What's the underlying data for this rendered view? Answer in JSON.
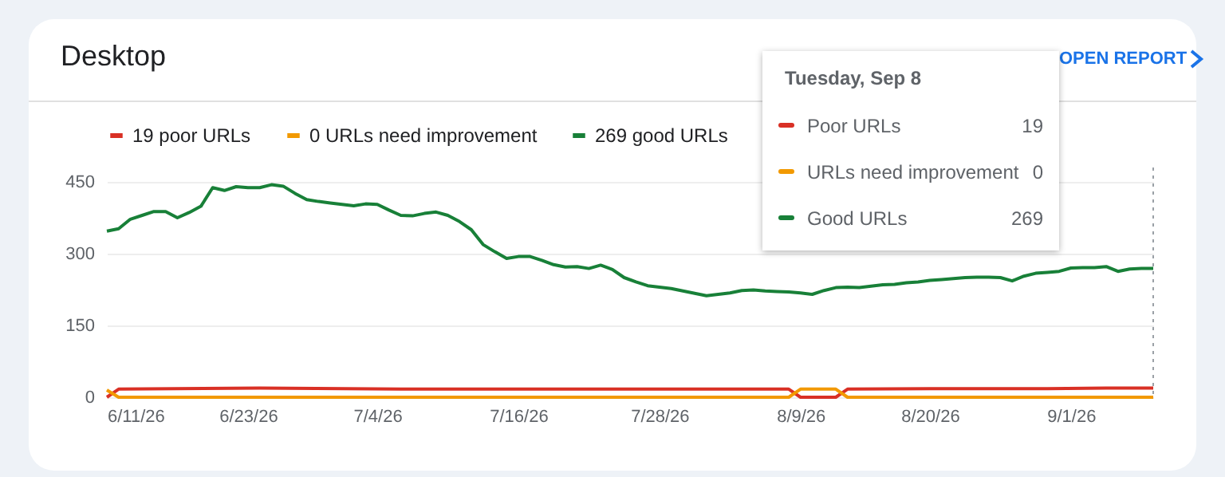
{
  "chart_data": {
    "type": "line",
    "title": "Desktop",
    "series": [
      {
        "name": "19 poor URLs",
        "color": "#d93025",
        "x": [
          "--06-11",
          "--06-12",
          "--06-24",
          "--07-06",
          "--08-08",
          "--08-09",
          "--08-12",
          "--08-13",
          "--08-20",
          "--08-30",
          "--09-04",
          "--09-08"
        ],
        "values": [
          0,
          17,
          19,
          17,
          17,
          0,
          0,
          17,
          18,
          18,
          19,
          19
        ]
      },
      {
        "name": "0 URLs need improvement",
        "color": "#f29900",
        "x": [
          "--06-11",
          "--06-12",
          "--08-08",
          "--08-09",
          "--08-12",
          "--08-13",
          "--09-08"
        ],
        "values": [
          15,
          0,
          0,
          17,
          17,
          0,
          0
        ]
      },
      {
        "name": "269 good URLs",
        "color": "#188038",
        "x": [
          "--06-11",
          "--06-12",
          "--06-13",
          "--06-14",
          "--06-15",
          "--06-16",
          "--06-17",
          "--06-18",
          "--06-19",
          "--06-20",
          "--06-21",
          "--06-22",
          "--06-23",
          "--06-24",
          "--06-25",
          "--06-26",
          "--06-27",
          "--06-28",
          "--06-29",
          "--06-30",
          "--07-01",
          "--07-02",
          "--07-03",
          "--07-04",
          "--07-05",
          "--07-06",
          "--07-07",
          "--07-08",
          "--07-09",
          "--07-10",
          "--07-11",
          "--07-12",
          "--07-13",
          "--07-14",
          "--07-15",
          "--07-16",
          "--07-17",
          "--07-18",
          "--07-19",
          "--07-20",
          "--07-21",
          "--07-22",
          "--07-23",
          "--07-24",
          "--07-25",
          "--07-26",
          "--07-27",
          "--07-28",
          "--07-29",
          "--07-30",
          "--07-31",
          "--08-01",
          "--08-02",
          "--08-03",
          "--08-04",
          "--08-05",
          "--08-06",
          "--08-07",
          "--08-08",
          "--08-09",
          "--08-10",
          "--08-11",
          "--08-12",
          "--08-13",
          "--08-14",
          "--08-15",
          "--08-16",
          "--08-17",
          "--08-18",
          "--08-19",
          "--08-20",
          "--08-21",
          "--08-22",
          "--08-23",
          "--08-24",
          "--08-25",
          "--08-26",
          "--08-27",
          "--08-28",
          "--08-29",
          "--08-30",
          "--08-31",
          "--09-01",
          "--09-02",
          "--09-03",
          "--09-04",
          "--09-05",
          "--09-06",
          "--09-07",
          "--09-08"
        ],
        "values": [
          347,
          352,
          372,
          380,
          388,
          388,
          375,
          386,
          399,
          438,
          432,
          440,
          438,
          438,
          444,
          441,
          426,
          413,
          409,
          406,
          403,
          400,
          404,
          403,
          391,
          380,
          379,
          384,
          387,
          380,
          367,
          350,
          319,
          304,
          290,
          294,
          294,
          286,
          277,
          272,
          273,
          269,
          276,
          267,
          250,
          241,
          233,
          230,
          227,
          222,
          217,
          212,
          215,
          218,
          223,
          224,
          222,
          221,
          220,
          218,
          215,
          223,
          229,
          230,
          229,
          232,
          235,
          236,
          239,
          241,
          244,
          246,
          248,
          250,
          251,
          251,
          250,
          243,
          253,
          259,
          261,
          263,
          270,
          271,
          271,
          273,
          263,
          268,
          269,
          269
        ]
      }
    ],
    "xlim": [
      "--06-11",
      "--09-08"
    ],
    "xticks": [
      {
        "value": "--06-11",
        "label": "6/11/26"
      },
      {
        "value": "--06-23",
        "label": "6/23/26"
      },
      {
        "value": "--07-04",
        "label": "7/4/26"
      },
      {
        "value": "--07-16",
        "label": "7/16/26"
      },
      {
        "value": "--07-28",
        "label": "7/28/26"
      },
      {
        "value": "--08-09",
        "label": "8/9/26"
      },
      {
        "value": "--08-20",
        "label": "8/20/26"
      },
      {
        "value": "--09-01",
        "label": "9/1/26"
      }
    ],
    "ylim": [
      0,
      480
    ],
    "yticks": [
      0,
      150,
      300,
      450
    ],
    "grid": "y",
    "legend": "top left",
    "ref_lines": [
      {
        "axis": "x",
        "value": "--09-08",
        "label": null,
        "color": "#9aa0a6",
        "line_style": "dotted"
      }
    ],
    "annotations": [
      "OPEN REPORT",
      "Tuesday, Sep 8",
      "Poor URLs",
      "19",
      "URLs need improvement",
      "0",
      "Good URLs",
      "269"
    ]
  }
}
